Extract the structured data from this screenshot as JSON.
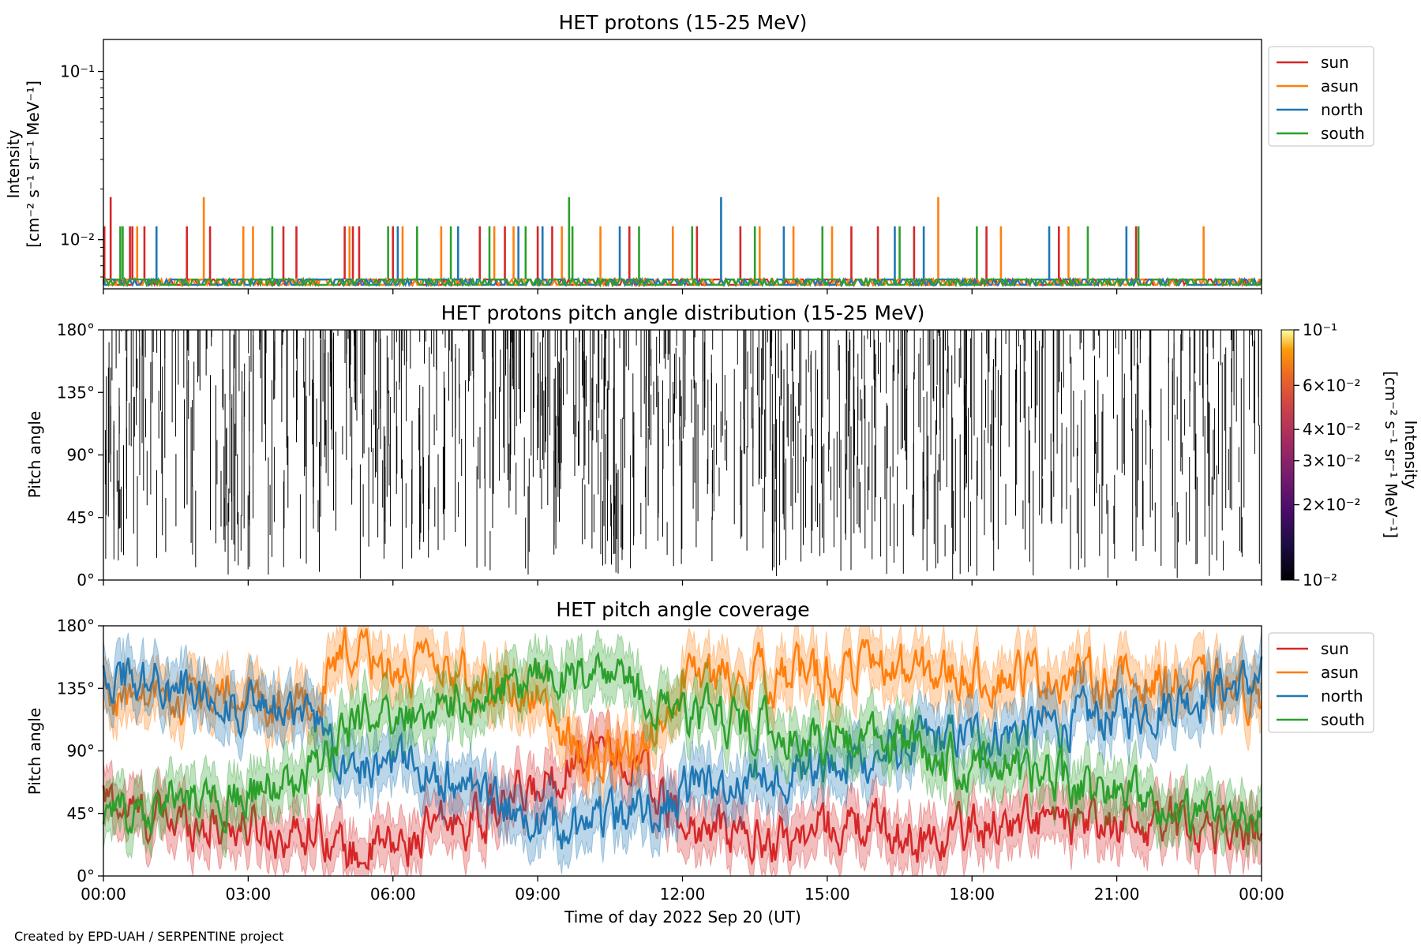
{
  "footer": {
    "credit": "Created by EPD-UAH / SERPENTINE project"
  },
  "colors": {
    "sun": "#d62728",
    "asun": "#ff7f0e",
    "north": "#1f77b4",
    "south": "#2ca02c"
  },
  "chart_data": [
    {
      "type": "line",
      "title": "HET protons (15-25 MeV)",
      "ylabel_line1": "Intensity",
      "ylabel_line2": "[cm⁻² s⁻¹ sr⁻¹ MeV⁻¹]",
      "yscale": "log",
      "ylim": [
        0.0051,
        0.155
      ],
      "ytick_values": [
        0.1,
        0.01
      ],
      "ytick_labels": [
        "10⁻¹",
        "10⁻²"
      ],
      "xlim_hours": [
        0,
        24
      ],
      "grid": false,
      "legend_placement": "outside-right-top",
      "series": [
        {
          "name": "sun",
          "color": "#d62728",
          "baseline": 0.0058,
          "spikes": [
            [
              0.02,
              0.012
            ],
            [
              0.15,
              0.0179
            ],
            [
              0.55,
              0.012
            ],
            [
              0.6,
              0.012
            ],
            [
              0.85,
              0.012
            ],
            [
              1.73,
              0.012
            ],
            [
              2.21,
              0.012
            ],
            [
              3.73,
              0.012
            ],
            [
              4.0,
              0.012
            ],
            [
              5.0,
              0.012
            ],
            [
              5.17,
              0.012
            ],
            [
              5.3,
              0.012
            ],
            [
              6.0,
              0.012
            ],
            [
              7.8,
              0.012
            ],
            [
              8.32,
              0.012
            ],
            [
              9.0,
              0.012
            ],
            [
              9.3,
              0.012
            ],
            [
              10.9,
              0.012
            ],
            [
              12.3,
              0.012
            ],
            [
              13.2,
              0.012
            ],
            [
              15.5,
              0.012
            ],
            [
              16.05,
              0.012
            ],
            [
              16.8,
              0.012
            ],
            [
              18.3,
              0.012
            ],
            [
              19.8,
              0.012
            ],
            [
              21.4,
              0.012
            ]
          ],
          "legend_label": "sun"
        },
        {
          "name": "asun",
          "color": "#ff7f0e",
          "baseline": 0.0058,
          "spikes": [
            [
              0.7,
              0.012
            ],
            [
              2.08,
              0.0179
            ],
            [
              2.9,
              0.012
            ],
            [
              3.1,
              0.012
            ],
            [
              5.1,
              0.012
            ],
            [
              6.2,
              0.012
            ],
            [
              7.0,
              0.012
            ],
            [
              8.1,
              0.012
            ],
            [
              8.5,
              0.012
            ],
            [
              9.5,
              0.012
            ],
            [
              10.3,
              0.012
            ],
            [
              11.8,
              0.012
            ],
            [
              13.6,
              0.012
            ],
            [
              14.3,
              0.012
            ],
            [
              15.1,
              0.012
            ],
            [
              17.3,
              0.0179
            ],
            [
              18.6,
              0.012
            ],
            [
              20.0,
              0.012
            ],
            [
              22.8,
              0.012
            ]
          ],
          "legend_label": "asun"
        },
        {
          "name": "north",
          "color": "#1f77b4",
          "baseline": 0.0058,
          "spikes": [
            [
              1.1,
              0.012
            ],
            [
              6.1,
              0.012
            ],
            [
              7.35,
              0.012
            ],
            [
              8.6,
              0.012
            ],
            [
              9.1,
              0.012
            ],
            [
              10.7,
              0.012
            ],
            [
              12.8,
              0.0179
            ],
            [
              14.1,
              0.012
            ],
            [
              16.4,
              0.012
            ],
            [
              17.0,
              0.012
            ],
            [
              19.6,
              0.012
            ],
            [
              21.2,
              0.012
            ]
          ],
          "legend_label": "north"
        },
        {
          "name": "south",
          "color": "#2ca02c",
          "baseline": 0.0058,
          "spikes": [
            [
              0.35,
              0.012
            ],
            [
              0.4,
              0.012
            ],
            [
              3.5,
              0.012
            ],
            [
              5.9,
              0.012
            ],
            [
              6.5,
              0.012
            ],
            [
              7.2,
              0.012
            ],
            [
              8.0,
              0.012
            ],
            [
              8.75,
              0.012
            ],
            [
              9.65,
              0.0179
            ],
            [
              9.72,
              0.012
            ],
            [
              11.1,
              0.012
            ],
            [
              12.2,
              0.012
            ],
            [
              13.5,
              0.012
            ],
            [
              14.9,
              0.012
            ],
            [
              16.5,
              0.012
            ],
            [
              18.1,
              0.012
            ],
            [
              20.4,
              0.012
            ],
            [
              21.45,
              0.012
            ]
          ],
          "legend_label": "south"
        }
      ]
    },
    {
      "type": "heatmap",
      "title": "HET protons pitch angle distribution (15-25 MeV)",
      "ylabel": "Pitch angle",
      "ylim_deg": [
        0,
        180
      ],
      "ytick_values": [
        0,
        45,
        90,
        135,
        180
      ],
      "ytick_labels": [
        "0°",
        "45°",
        "90°",
        "135°",
        "180°"
      ],
      "xlim_hours": [
        0,
        24
      ],
      "colorbar": {
        "colormap": "inferno",
        "scale": "log",
        "range": [
          0.01,
          0.1
        ],
        "tick_values": [
          0.1,
          0.06,
          0.04,
          0.03,
          0.02,
          0.01
        ],
        "tick_labels": [
          "10⁻¹",
          "6×10⁻²",
          "4×10⁻²",
          "3×10⁻²",
          "2×10⁻²",
          "10⁻²"
        ],
        "label_line1": "Intensity",
        "label_line2": "[cm⁻² s⁻¹ sr⁻¹ MeV⁻¹]"
      },
      "marks": "dense thin black vertical strokes across the full time range, spanning roughly 0-180 degrees"
    },
    {
      "type": "area",
      "title": "HET pitch angle coverage",
      "ylabel": "Pitch angle",
      "xlabel": "Time of day 2022 Sep 20 (UT)",
      "ylim_deg": [
        0,
        180
      ],
      "ytick_values": [
        0,
        45,
        90,
        135,
        180
      ],
      "ytick_labels": [
        "0°",
        "45°",
        "90°",
        "135°",
        "180°"
      ],
      "xlim_hours": [
        0,
        24
      ],
      "xtick_values": [
        0,
        3,
        6,
        9,
        12,
        15,
        18,
        21,
        24
      ],
      "xtick_labels": [
        "00:00",
        "03:00",
        "06:00",
        "09:00",
        "12:00",
        "15:00",
        "18:00",
        "21:00",
        "00:00"
      ],
      "band_halfwidth_deg": 18,
      "legend_placement": "outside-right-top",
      "series": [
        {
          "name": "sun",
          "legend_label": "sun",
          "color": "#d62728",
          "x": [
            0,
            1,
            2,
            3,
            4,
            4.5,
            5,
            6,
            7,
            8,
            9,
            10,
            11,
            12,
            13,
            14,
            15,
            16,
            17,
            18,
            19,
            20,
            21,
            22,
            23,
            24
          ],
          "y": [
            55,
            40,
            40,
            35,
            30,
            40,
            15,
            20,
            35,
            45,
            60,
            95,
            80,
            35,
            30,
            25,
            35,
            35,
            25,
            35,
            40,
            35,
            35,
            40,
            35,
            30
          ]
        },
        {
          "name": "asun",
          "legend_label": "asun",
          "color": "#ff7f0e",
          "x": [
            0,
            1,
            2,
            3,
            4,
            4.5,
            5,
            6,
            7,
            8,
            9,
            10,
            11,
            12,
            13,
            14,
            15,
            16,
            17,
            18,
            19,
            20,
            21,
            22,
            23,
            24
          ],
          "y": [
            130,
            125,
            130,
            125,
            125,
            130,
            160,
            150,
            145,
            140,
            130,
            85,
            90,
            140,
            145,
            145,
            145,
            150,
            145,
            145,
            145,
            145,
            140,
            140,
            135,
            130
          ]
        },
        {
          "name": "north",
          "legend_label": "north",
          "color": "#1f77b4",
          "x": [
            0,
            1,
            2,
            3,
            4,
            4.5,
            5,
            6,
            7,
            8,
            9,
            10,
            11,
            12,
            13,
            14,
            15,
            16,
            17,
            18,
            19,
            20,
            21,
            22,
            23,
            24
          ],
          "y": [
            150,
            140,
            135,
            120,
            115,
            110,
            85,
            80,
            70,
            55,
            40,
            35,
            45,
            60,
            65,
            75,
            80,
            85,
            95,
            100,
            105,
            110,
            115,
            125,
            135,
            140
          ]
        },
        {
          "name": "south",
          "legend_label": "south",
          "color": "#2ca02c",
          "x": [
            0,
            1,
            2,
            3,
            4,
            4.5,
            5,
            6,
            7,
            8,
            9,
            10,
            11,
            12,
            13,
            14,
            15,
            16,
            17,
            18,
            19,
            20,
            21,
            22,
            23,
            24
          ],
          "y": [
            40,
            55,
            55,
            60,
            65,
            75,
            105,
            115,
            120,
            130,
            140,
            145,
            135,
            115,
            110,
            105,
            100,
            95,
            90,
            85,
            75,
            65,
            55,
            45,
            40,
            45
          ]
        }
      ]
    }
  ]
}
